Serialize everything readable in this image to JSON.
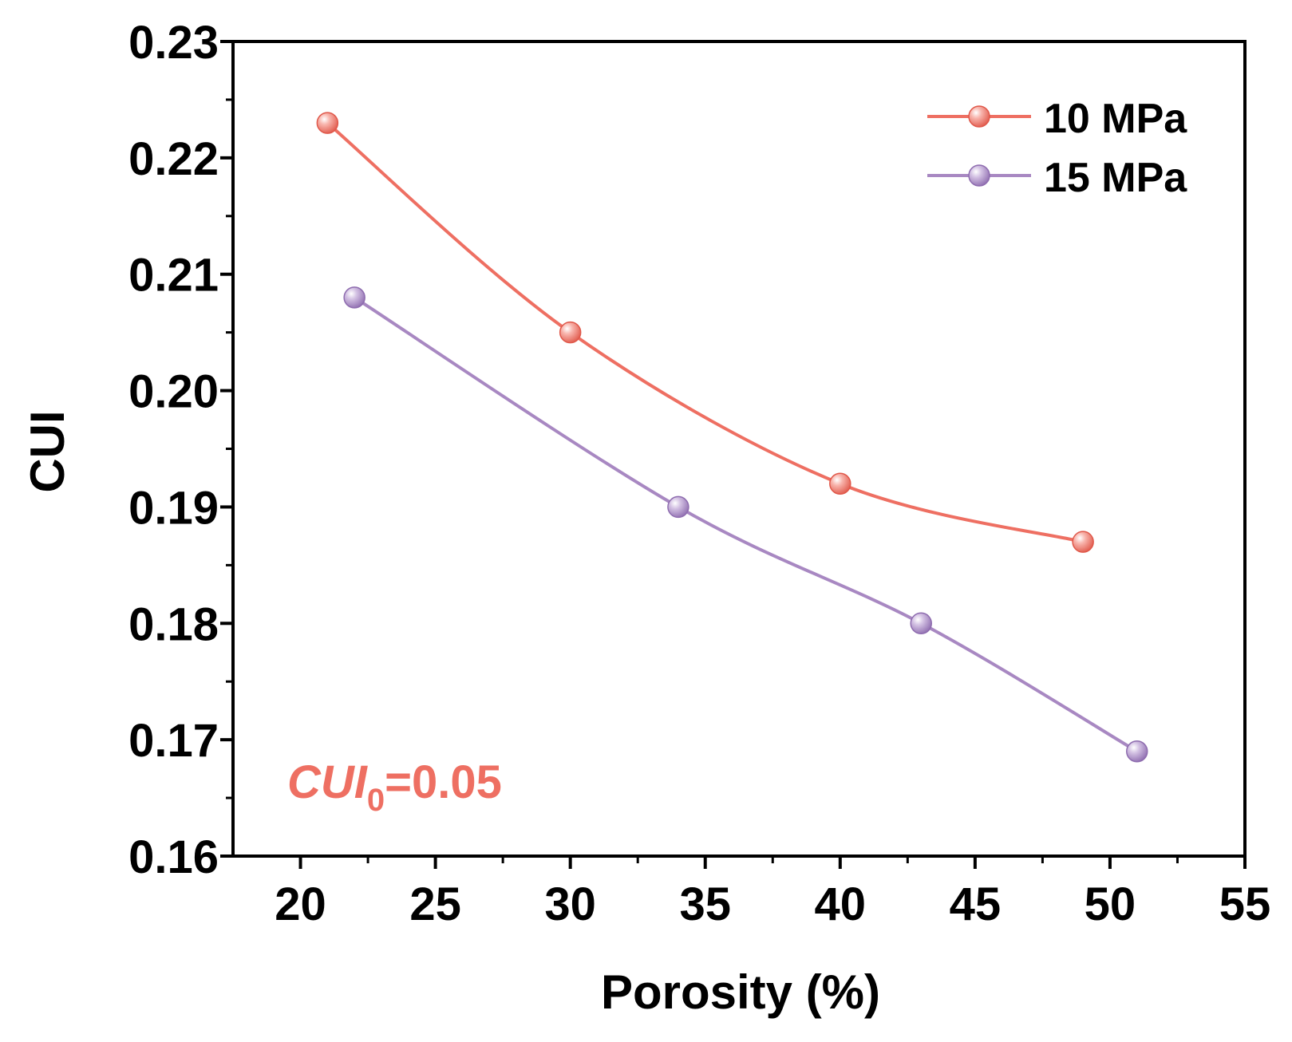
{
  "chart_data": {
    "type": "line",
    "title": "",
    "xlabel": "Porosity (%)",
    "ylabel": "CUI",
    "xlim": [
      17.5,
      55
    ],
    "ylim": [
      0.16,
      0.23
    ],
    "x_ticks": [
      20,
      25,
      30,
      35,
      40,
      45,
      50,
      55
    ],
    "x_tick_labels": [
      "20",
      "25",
      "30",
      "35",
      "40",
      "45",
      "50",
      "55"
    ],
    "y_ticks": [
      0.16,
      0.17,
      0.18,
      0.19,
      0.2,
      0.21,
      0.22,
      0.23
    ],
    "y_tick_labels": [
      "0.16",
      "0.17",
      "0.18",
      "0.19",
      "0.20",
      "0.21",
      "0.22",
      "0.23"
    ],
    "grid": false,
    "legend_position": "top-right",
    "series": [
      {
        "name": "10 MPa",
        "color": "#EE6F62",
        "x": [
          21,
          30,
          40,
          49
        ],
        "y": [
          0.223,
          0.205,
          0.192,
          0.187
        ]
      },
      {
        "name": "15 MPa",
        "color": "#A888C2",
        "x": [
          22,
          34,
          43,
          51
        ],
        "y": [
          0.208,
          0.19,
          0.18,
          0.169
        ]
      }
    ],
    "annotation": {
      "main": "CUI",
      "subscript": "0",
      "suffix": "=0.05",
      "color": "#EE6F62"
    }
  }
}
